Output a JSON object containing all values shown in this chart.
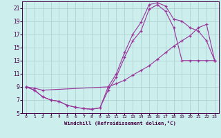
{
  "xlabel": "Windchill (Refroidissement éolien,°C)",
  "bg_color": "#cceeed",
  "grid_color": "#aacccc",
  "line_color": "#993399",
  "xlim": [
    -0.5,
    23.5
  ],
  "ylim": [
    5,
    22
  ],
  "yticks": [
    5,
    7,
    9,
    11,
    13,
    15,
    17,
    19,
    21
  ],
  "xticks": [
    0,
    1,
    2,
    3,
    4,
    5,
    6,
    7,
    8,
    9,
    10,
    11,
    12,
    13,
    14,
    15,
    16,
    17,
    18,
    19,
    20,
    21,
    22,
    23
  ],
  "curve1_x": [
    0,
    1,
    2,
    3,
    4,
    5,
    6,
    7,
    8,
    9,
    10,
    11,
    12,
    13,
    14,
    15,
    16,
    17,
    18,
    19,
    20,
    21,
    22,
    23
  ],
  "curve1_y": [
    9.0,
    8.5,
    7.5,
    7.0,
    6.8,
    6.2,
    5.9,
    5.7,
    5.6,
    5.8,
    9.0,
    11.0,
    14.2,
    17.0,
    18.8,
    21.5,
    21.8,
    21.3,
    19.3,
    19.0,
    18.0,
    17.5,
    16.0,
    13.0
  ],
  "curve2_x": [
    0,
    1,
    2,
    3,
    4,
    5,
    6,
    7,
    8,
    9,
    10,
    11,
    12,
    13,
    14,
    15,
    16,
    17,
    18,
    19,
    20,
    21,
    22,
    23
  ],
  "curve2_y": [
    9.0,
    8.5,
    7.5,
    7.0,
    6.8,
    6.2,
    5.9,
    5.7,
    5.6,
    5.8,
    8.5,
    10.5,
    13.5,
    16.0,
    17.5,
    20.8,
    21.5,
    20.5,
    18.0,
    13.0,
    13.0,
    13.0,
    13.0,
    13.0
  ],
  "curve3_x": [
    0,
    1,
    2,
    10,
    11,
    12,
    13,
    14,
    15,
    16,
    17,
    18,
    19,
    20,
    21,
    22,
    23
  ],
  "curve3_y": [
    9.0,
    8.8,
    8.5,
    9.0,
    9.5,
    10.0,
    10.8,
    11.5,
    12.2,
    13.2,
    14.2,
    15.2,
    16.0,
    16.8,
    18.0,
    18.5,
    13.0
  ]
}
